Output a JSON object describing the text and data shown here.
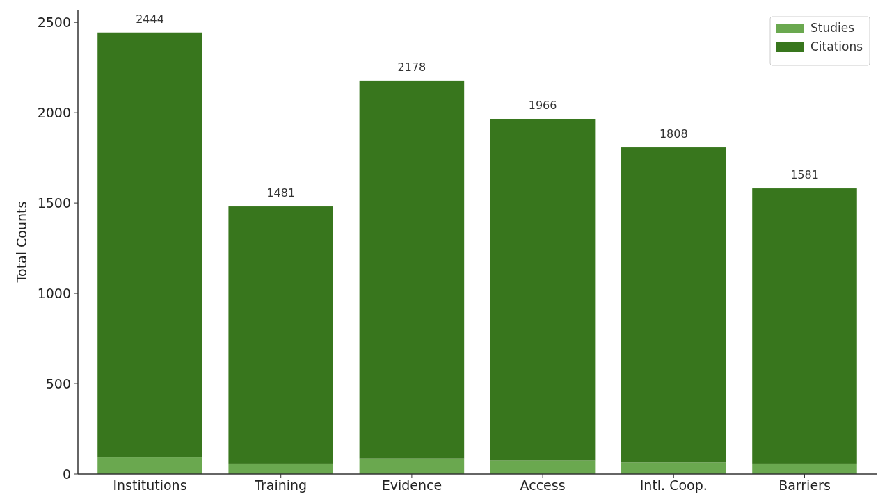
{
  "chart_data": {
    "type": "bar",
    "stacked": true,
    "ylabel": "Total Counts",
    "categories": [
      "Institutions",
      "Training",
      "Evidence",
      "Access",
      "Intl. Coop.",
      "Barriers"
    ],
    "series": [
      {
        "name": "Studies",
        "color": "#6aa84f",
        "values": [
          92,
          58,
          86,
          75,
          64,
          58
        ]
      },
      {
        "name": "Citations",
        "color": "#38761d",
        "values": [
          2352,
          1423,
          2092,
          1891,
          1744,
          1523
        ]
      }
    ],
    "totals": [
      "2444",
      "1481",
      "2178",
      "1966",
      "1808",
      "1581"
    ],
    "ylim": [
      0,
      2570
    ],
    "yticks": [
      0,
      500,
      1000,
      1500,
      2000,
      2500
    ],
    "grid": false,
    "legend": "top right"
  }
}
